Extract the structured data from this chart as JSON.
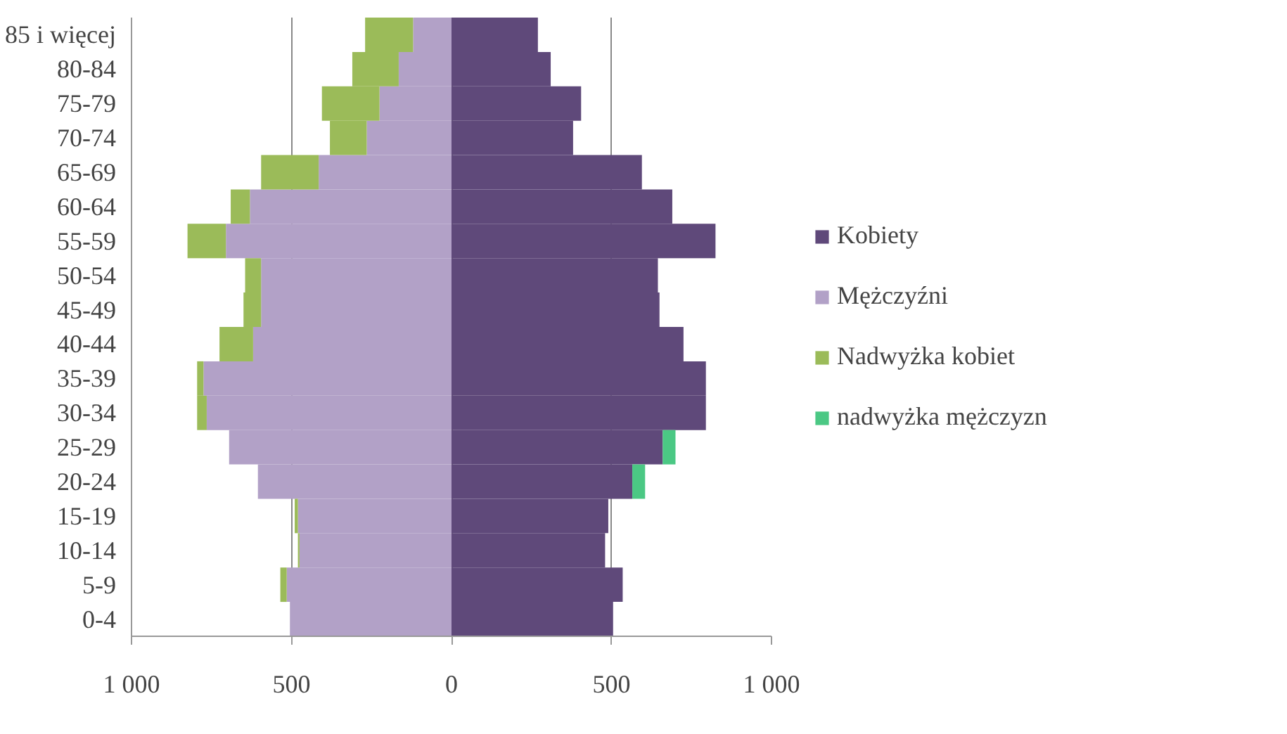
{
  "chart_data": {
    "type": "bar",
    "orientation": "horizontal",
    "stacked": true,
    "categories": [
      "85 i więcej",
      "80-84",
      "75-79",
      "70-74",
      "65-69",
      "60-64",
      "55-59",
      "50-54",
      "45-49",
      "40-44",
      "35-39",
      "30-34",
      "25-29",
      "20-24",
      "15-19",
      "10-14",
      "5-9",
      "0-4"
    ],
    "series": [
      {
        "name": "Kobiety",
        "color": "#5f497a",
        "values": [
          270,
          310,
          405,
          380,
          595,
          690,
          825,
          645,
          650,
          725,
          795,
          795,
          660,
          565,
          490,
          480,
          535,
          505
        ]
      },
      {
        "name": "Mężczyźni",
        "color": "#b2a1c7",
        "values": [
          -120,
          -165,
          -225,
          -265,
          -415,
          -630,
          -705,
          -595,
          -595,
          -620,
          -775,
          -765,
          -695,
          -605,
          -480,
          -475,
          -515,
          -505
        ]
      },
      {
        "name": "Nadwyżka kobiet",
        "color": "#9bbb59",
        "values": [
          -150,
          -145,
          -180,
          -115,
          -180,
          -60,
          -120,
          -50,
          -55,
          -105,
          -20,
          -30,
          0,
          0,
          -10,
          -5,
          -20,
          0
        ]
      },
      {
        "name": "nadwyżka mężczyzn",
        "color": "#4bc884",
        "values": [
          0,
          0,
          0,
          0,
          0,
          0,
          0,
          0,
          0,
          0,
          0,
          0,
          40,
          40,
          0,
          0,
          0,
          0
        ]
      }
    ],
    "xlim": [
      -1000,
      1000
    ],
    "xticks": [
      {
        "value": -1000,
        "label": "1 000"
      },
      {
        "value": -500,
        "label": "500"
      },
      0,
      500,
      {
        "value": 1000,
        "label": "1 000"
      }
    ],
    "grid": "x",
    "legend": "right"
  }
}
